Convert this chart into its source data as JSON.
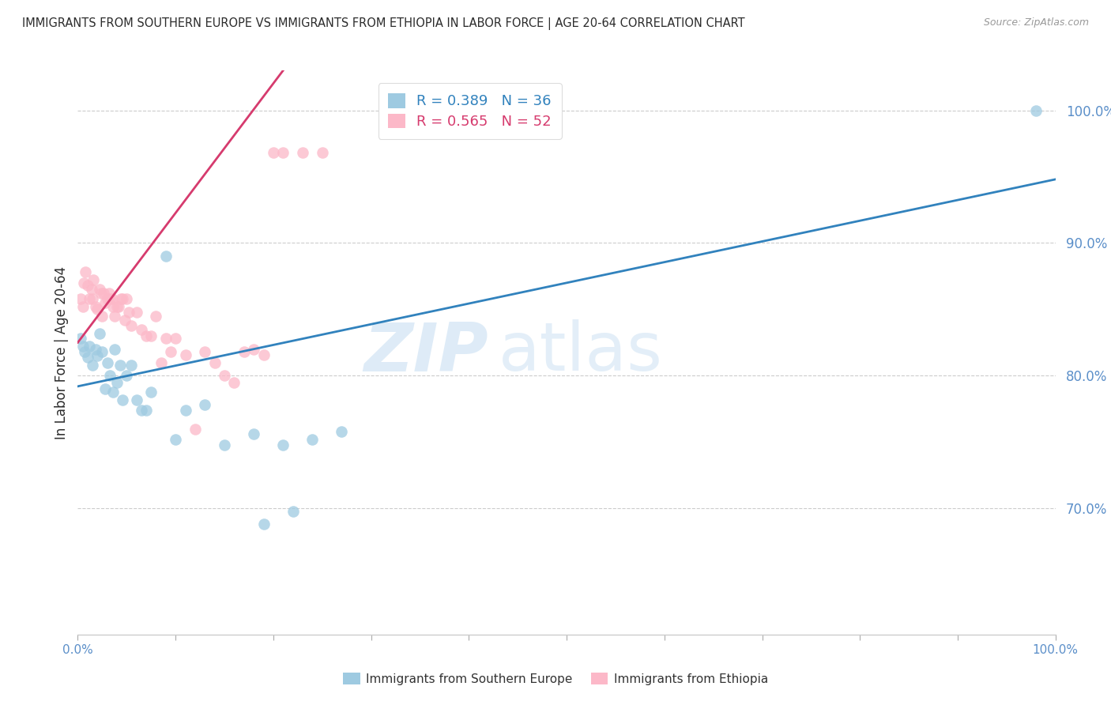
{
  "title": "IMMIGRANTS FROM SOUTHERN EUROPE VS IMMIGRANTS FROM ETHIOPIA IN LABOR FORCE | AGE 20-64 CORRELATION CHART",
  "source": "Source: ZipAtlas.com",
  "ylabel": "In Labor Force | Age 20-64",
  "ytick_labels": [
    "70.0%",
    "80.0%",
    "90.0%",
    "100.0%"
  ],
  "ytick_values": [
    0.7,
    0.8,
    0.9,
    1.0
  ],
  "xlim": [
    0.0,
    1.0
  ],
  "ylim": [
    0.605,
    1.03
  ],
  "legend_label_blue": "Immigrants from Southern Europe",
  "legend_label_pink": "Immigrants from Ethiopia",
  "R_blue": 0.389,
  "N_blue": 36,
  "R_pink": 0.565,
  "N_pink": 52,
  "color_blue": "#9ecae1",
  "color_pink": "#fcb8c8",
  "color_line_blue": "#3182bd",
  "color_line_pink": "#d63b6e",
  "watermark_zip": "ZIP",
  "watermark_atlas": "atlas",
  "scatter_blue_x": [
    0.003,
    0.005,
    0.007,
    0.01,
    0.012,
    0.015,
    0.018,
    0.02,
    0.022,
    0.025,
    0.028,
    0.03,
    0.033,
    0.036,
    0.038,
    0.04,
    0.043,
    0.046,
    0.05,
    0.055,
    0.06,
    0.065,
    0.07,
    0.075,
    0.09,
    0.1,
    0.11,
    0.13,
    0.15,
    0.18,
    0.21,
    0.24,
    0.27,
    0.22,
    0.19,
    0.98
  ],
  "scatter_blue_y": [
    0.828,
    0.822,
    0.818,
    0.814,
    0.822,
    0.808,
    0.82,
    0.815,
    0.832,
    0.818,
    0.79,
    0.81,
    0.8,
    0.788,
    0.82,
    0.795,
    0.808,
    0.782,
    0.8,
    0.808,
    0.782,
    0.774,
    0.774,
    0.788,
    0.89,
    0.752,
    0.774,
    0.778,
    0.748,
    0.756,
    0.748,
    0.752,
    0.758,
    0.698,
    0.688,
    1.0
  ],
  "scatter_pink_x": [
    0.003,
    0.005,
    0.006,
    0.008,
    0.01,
    0.012,
    0.014,
    0.015,
    0.016,
    0.018,
    0.02,
    0.022,
    0.024,
    0.025,
    0.026,
    0.028,
    0.03,
    0.032,
    0.033,
    0.035,
    0.036,
    0.038,
    0.04,
    0.042,
    0.044,
    0.046,
    0.048,
    0.05,
    0.052,
    0.055,
    0.06,
    0.065,
    0.07,
    0.075,
    0.08,
    0.085,
    0.09,
    0.095,
    0.1,
    0.11,
    0.12,
    0.13,
    0.14,
    0.15,
    0.16,
    0.17,
    0.18,
    0.19,
    0.2,
    0.21,
    0.23,
    0.25
  ],
  "scatter_pink_y": [
    0.858,
    0.852,
    0.87,
    0.878,
    0.868,
    0.858,
    0.865,
    0.858,
    0.872,
    0.852,
    0.85,
    0.865,
    0.862,
    0.845,
    0.862,
    0.855,
    0.858,
    0.862,
    0.858,
    0.858,
    0.852,
    0.845,
    0.852,
    0.852,
    0.858,
    0.858,
    0.842,
    0.858,
    0.848,
    0.838,
    0.848,
    0.835,
    0.83,
    0.83,
    0.845,
    0.81,
    0.828,
    0.818,
    0.828,
    0.816,
    0.76,
    0.818,
    0.81,
    0.8,
    0.795,
    0.818,
    0.82,
    0.816,
    0.968,
    0.968,
    0.968,
    0.968
  ],
  "blue_line_x": [
    0.0,
    1.0
  ],
  "blue_line_y": [
    0.792,
    0.948
  ],
  "pink_line_x": [
    0.0,
    0.21
  ],
  "pink_line_y": [
    0.825,
    1.03
  ],
  "grid_color": "#cccccc",
  "title_color": "#2c2c2c",
  "axis_label_color": "#2c2c2c",
  "tick_color_y": "#5b8fc9",
  "tick_color_x": "#5b8fc9",
  "bottom_legend_text_color": "#333333"
}
